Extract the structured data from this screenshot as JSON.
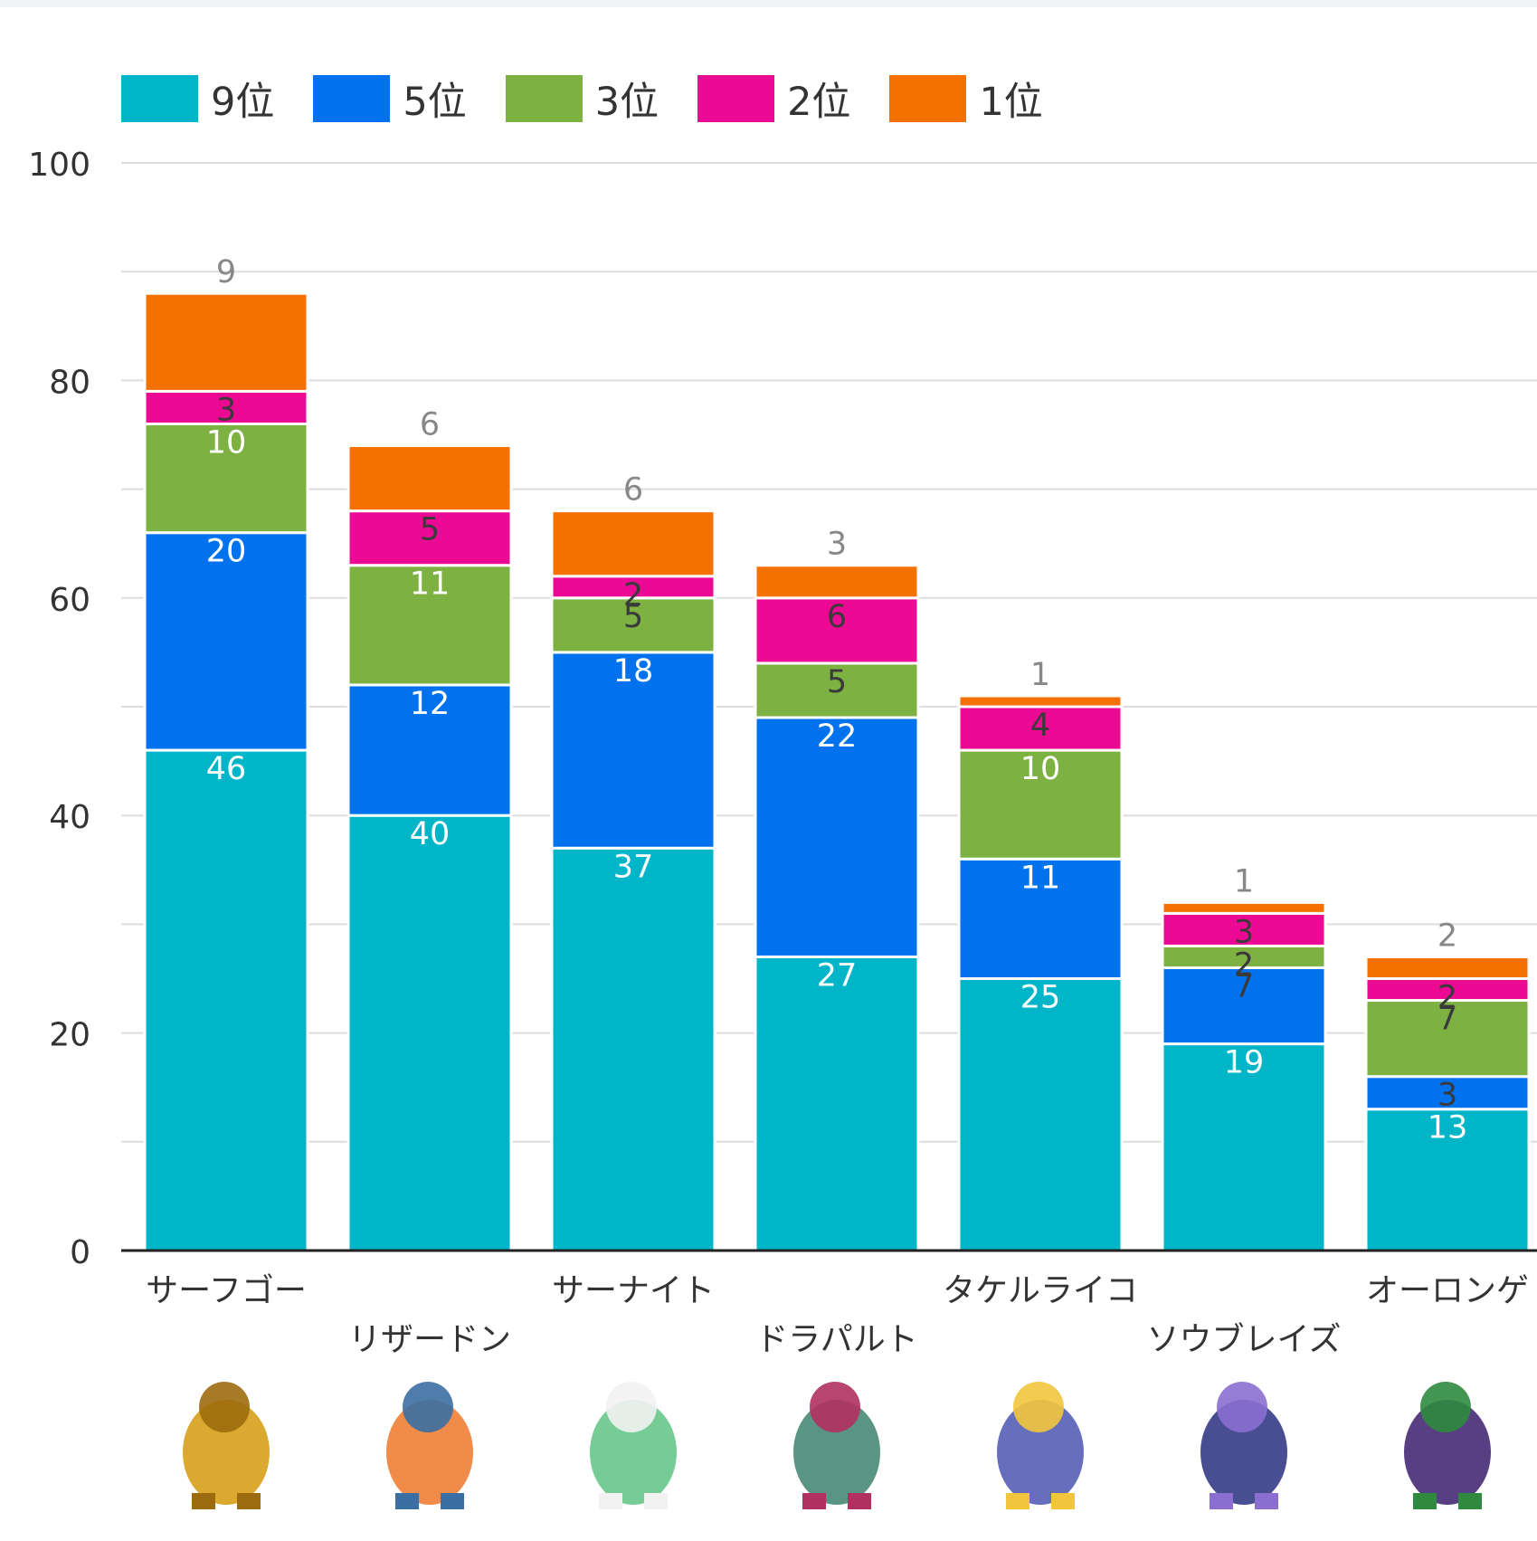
{
  "colors": {
    "9位": "#00b5c8",
    "5位": "#0072ed",
    "3位": "#7db142",
    "2位": "#ec0993",
    "1位": "#f47100",
    "grid": "#dddddd",
    "axis": "#222222",
    "tick_text": "#333333"
  },
  "chart_data": {
    "type": "bar",
    "stacked": true,
    "ylim": [
      0,
      100
    ],
    "yticks": [
      0,
      20,
      40,
      60,
      80,
      100
    ],
    "grid": true,
    "legend_position": "top-left",
    "categories": [
      "サーフゴー",
      "リザードン",
      "サーナイト",
      "ドラパルト",
      "タケルライコ",
      "ソウブレイズ",
      "オーロンゲ"
    ],
    "series": [
      {
        "name": "9位",
        "values": [
          46,
          40,
          37,
          27,
          25,
          19,
          13
        ]
      },
      {
        "name": "5位",
        "values": [
          20,
          12,
          18,
          22,
          11,
          7,
          3
        ]
      },
      {
        "name": "3位",
        "values": [
          10,
          11,
          5,
          5,
          10,
          2,
          7
        ]
      },
      {
        "name": "2位",
        "values": [
          3,
          5,
          2,
          6,
          4,
          3,
          2
        ]
      },
      {
        "name": "1位",
        "values": [
          9,
          6,
          6,
          3,
          1,
          1,
          2
        ]
      }
    ],
    "icon_names": [
      "gholdengo-sprite-icon",
      "charizard-sprite-icon",
      "gardevoir-sprite-icon",
      "dragapult-sprite-icon",
      "raging-bolt-sprite-icon",
      "ceruledge-sprite-icon",
      "grimmsnarl-sprite-icon"
    ]
  }
}
